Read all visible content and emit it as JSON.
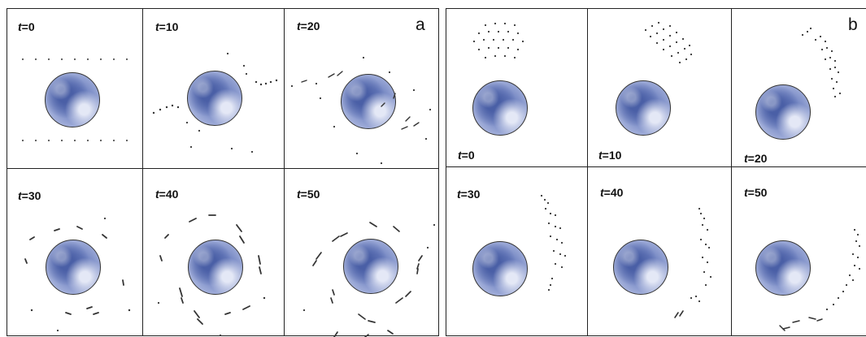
{
  "panels": {
    "a": {
      "letter": "a",
      "frames": [
        {
          "t_symbol": "t",
          "t_text": "=0"
        },
        {
          "t_symbol": "t",
          "t_text": "=10"
        },
        {
          "t_symbol": "t",
          "t_text": "=20"
        },
        {
          "t_symbol": "t",
          "t_text": "=30"
        },
        {
          "t_symbol": "t",
          "t_text": "=40"
        },
        {
          "t_symbol": "t",
          "t_text": "=50"
        }
      ]
    },
    "b": {
      "letter": "b",
      "frames": [
        {
          "t_symbol": "t",
          "t_text": "=0"
        },
        {
          "t_symbol": "t",
          "t_text": "=10"
        },
        {
          "t_symbol": "t",
          "t_text": "=20"
        },
        {
          "t_symbol": "t",
          "t_text": "=30"
        },
        {
          "t_symbol": "t",
          "t_text": "=40"
        },
        {
          "t_symbol": "t",
          "t_text": "=50"
        }
      ]
    }
  },
  "colors": {
    "planet": "#6c7fbe",
    "border": "#222222",
    "particle": "#333333"
  }
}
